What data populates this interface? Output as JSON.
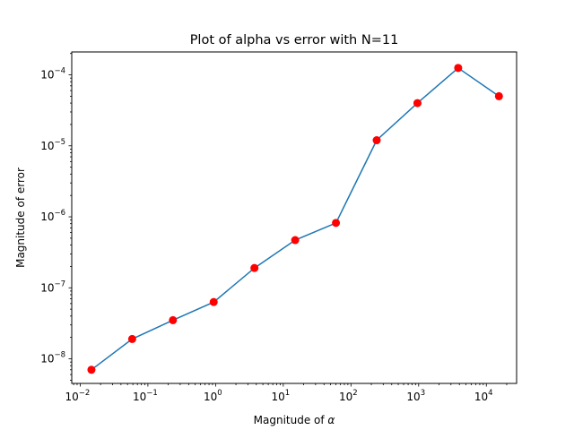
{
  "chart_data": {
    "type": "line",
    "title": "Plot of alpha vs error with N=11",
    "xlabel": "Magnitude of ",
    "xlabel_symbol": "α",
    "ylabel": "Magnitude of error",
    "xscale": "log",
    "yscale": "log",
    "xlim": [
      0.0075,
      28000
    ],
    "ylim": [
      4.5e-09,
      0.00021
    ],
    "xticks": [
      {
        "value": 0.01,
        "mant": "10",
        "exp": "−2"
      },
      {
        "value": 0.1,
        "mant": "10",
        "exp": "−1"
      },
      {
        "value": 1,
        "mant": "10",
        "exp": "0"
      },
      {
        "value": 10,
        "mant": "10",
        "exp": "1"
      },
      {
        "value": 100,
        "mant": "10",
        "exp": "2"
      },
      {
        "value": 1000,
        "mant": "10",
        "exp": "3"
      },
      {
        "value": 10000,
        "mant": "10",
        "exp": "4"
      }
    ],
    "yticks": [
      {
        "value": 1e-08,
        "mant": "10",
        "exp": "−8"
      },
      {
        "value": 1e-07,
        "mant": "10",
        "exp": "−7"
      },
      {
        "value": 1e-06,
        "mant": "10",
        "exp": "−6"
      },
      {
        "value": 1e-05,
        "mant": "10",
        "exp": "−5"
      },
      {
        "value": 0.0001,
        "mant": "10",
        "exp": "−4"
      }
    ],
    "series": [
      {
        "x": [
          0.01465,
          0.0586,
          0.2344,
          0.9375,
          3.75,
          15,
          60,
          240,
          960,
          3840,
          15360
        ],
        "y": [
          7e-09,
          1.9e-08,
          3.5e-08,
          6.3e-08,
          1.9e-07,
          4.7e-07,
          8.2e-07,
          1.2e-05,
          4e-05,
          0.000125,
          5e-05
        ]
      }
    ],
    "line_color": "#1f77b4",
    "marker_color": "#ff0000",
    "grid": false
  }
}
